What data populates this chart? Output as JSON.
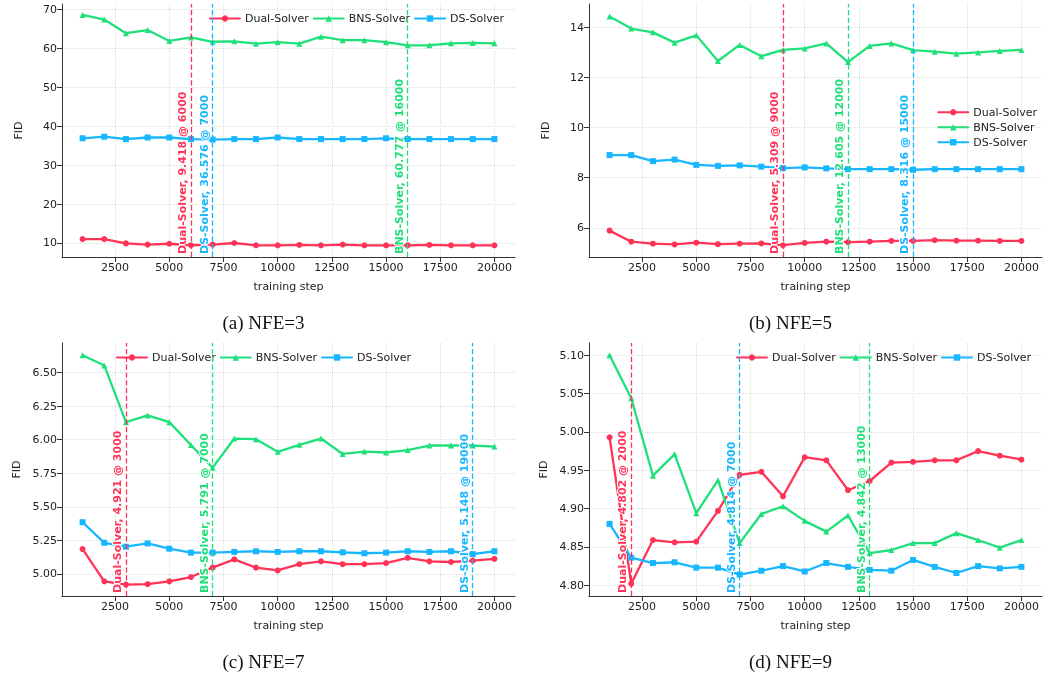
{
  "chart_data": [
    {
      "type": "line",
      "title": "(a) NFE=3",
      "xlabel": "training step",
      "ylabel": "FID",
      "grid": true,
      "legend": "top right",
      "line_style": "solid",
      "x": [
        1000,
        2000,
        3000,
        4000,
        5000,
        6000,
        7000,
        8000,
        9000,
        10000,
        11000,
        12000,
        13000,
        14000,
        15000,
        16000,
        17000,
        18000,
        19000,
        20000
      ],
      "xlim": [
        50,
        20950
      ],
      "xticks": [
        2500,
        5000,
        7500,
        10000,
        12500,
        15000,
        17500,
        20000
      ],
      "ylim": [
        6.4,
        71.4
      ],
      "yticks": [
        10,
        20,
        30,
        40,
        50,
        60,
        70
      ],
      "series": [
        {
          "name": "Dual-Solver",
          "color": "#ff3358",
          "marker": "circle",
          "values": [
            11.0,
            11.0,
            9.9,
            9.6,
            9.8,
            9.418,
            9.6,
            10.0,
            9.4,
            9.4,
            9.5,
            9.4,
            9.6,
            9.4,
            9.4,
            9.4,
            9.5,
            9.4,
            9.4,
            9.4
          ]
        },
        {
          "name": "BNS-Solver",
          "color": "#1fe07a",
          "marker": "triangle",
          "values": [
            68.6,
            67.4,
            63.9,
            64.7,
            61.9,
            62.8,
            61.7,
            61.8,
            61.2,
            61.6,
            61.2,
            63.0,
            62.1,
            62.1,
            61.6,
            60.777,
            60.8,
            61.3,
            61.4,
            61.3
          ]
        },
        {
          "name": "DS-Solver",
          "color": "#17b6ff",
          "marker": "square",
          "values": [
            36.9,
            37.3,
            36.7,
            37.1,
            37.1,
            36.7,
            36.576,
            36.7,
            36.7,
            37.1,
            36.7,
            36.7,
            36.7,
            36.7,
            36.9,
            36.7,
            36.7,
            36.7,
            36.7,
            36.7
          ]
        }
      ],
      "ref_lines": [
        {
          "axis": "x",
          "value": 6000,
          "label": "Dual-Solver, 9.418 @ 6000",
          "color": "#ff3358",
          "line_style": "dashed"
        },
        {
          "axis": "x",
          "value": 7000,
          "label": "DS-Solver, 36.576 @ 7000",
          "color": "#17b6ff",
          "line_style": "dashed"
        },
        {
          "axis": "x",
          "value": 16000,
          "label": "BNS-Solver, 60.777 @ 16000",
          "color": "#1fe07a",
          "line_style": "dashed"
        }
      ]
    },
    {
      "type": "line",
      "title": "(b) NFE=5",
      "xlabel": "training step",
      "ylabel": "FID",
      "grid": true,
      "legend": "right",
      "line_style": "solid",
      "x": [
        1000,
        2000,
        3000,
        4000,
        5000,
        6000,
        7000,
        8000,
        9000,
        10000,
        11000,
        12000,
        13000,
        14000,
        15000,
        16000,
        17000,
        18000,
        19000,
        20000
      ],
      "xlim": [
        50,
        20950
      ],
      "xticks": [
        2500,
        5000,
        7500,
        10000,
        12500,
        15000,
        17500,
        20000
      ],
      "ylim": [
        4.84,
        14.92
      ],
      "yticks": [
        6,
        8,
        10,
        12,
        14
      ],
      "series": [
        {
          "name": "Dual-Solver",
          "color": "#ff3358",
          "marker": "circle",
          "values": [
            5.89,
            5.45,
            5.37,
            5.34,
            5.41,
            5.35,
            5.37,
            5.38,
            5.309,
            5.4,
            5.45,
            5.43,
            5.45,
            5.48,
            5.48,
            5.51,
            5.49,
            5.49,
            5.48,
            5.48
          ]
        },
        {
          "name": "BNS-Solver",
          "color": "#1fe07a",
          "marker": "triangle",
          "values": [
            14.42,
            13.94,
            13.79,
            13.38,
            13.67,
            12.65,
            13.29,
            12.84,
            13.09,
            13.15,
            13.35,
            12.605,
            13.25,
            13.35,
            13.08,
            13.02,
            12.94,
            12.99,
            13.05,
            13.09
          ]
        },
        {
          "name": "DS-Solver",
          "color": "#17b6ff",
          "marker": "square",
          "values": [
            8.9,
            8.9,
            8.66,
            8.72,
            8.51,
            8.47,
            8.49,
            8.44,
            8.38,
            8.41,
            8.37,
            8.34,
            8.34,
            8.34,
            8.316,
            8.34,
            8.34,
            8.34,
            8.34,
            8.34
          ]
        }
      ],
      "ref_lines": [
        {
          "axis": "x",
          "value": 9000,
          "label": "Dual-Solver, 5.309 @ 9000",
          "color": "#ff3358",
          "line_style": "dashed"
        },
        {
          "axis": "x",
          "value": 12000,
          "label": "BNS-Solver, 12.605 @ 12000",
          "color": "#1fe07a",
          "line_style": "dashed"
        },
        {
          "axis": "x",
          "value": 15000,
          "label": "DS-Solver, 8.316 @ 15000",
          "color": "#17b6ff",
          "line_style": "dashed"
        }
      ]
    },
    {
      "type": "line",
      "title": "(c) NFE=7",
      "xlabel": "training step",
      "ylabel": "FID",
      "grid": true,
      "legend": "top",
      "line_style": "solid",
      "x": [
        1000,
        2000,
        3000,
        4000,
        5000,
        6000,
        7000,
        8000,
        9000,
        10000,
        11000,
        12000,
        13000,
        14000,
        15000,
        16000,
        17000,
        18000,
        19000,
        20000
      ],
      "xlim": [
        50,
        20950
      ],
      "xticks": [
        2500,
        5000,
        7500,
        10000,
        12500,
        15000,
        17500,
        20000
      ],
      "ylim": [
        4.836,
        6.719
      ],
      "yticks": [
        {
          "value": 5,
          "label": "5.00"
        },
        {
          "value": 5.25,
          "label": "5.25"
        },
        {
          "value": 5.5,
          "label": "5.50"
        },
        {
          "value": 5.75,
          "label": "5.75"
        },
        {
          "value": 6,
          "label": "6.00"
        },
        {
          "value": 6.25,
          "label": "6.25"
        },
        {
          "value": 6.5,
          "label": "6.50"
        }
      ],
      "series": [
        {
          "name": "Dual-Solver",
          "color": "#ff3358",
          "marker": "circle",
          "values": [
            5.185,
            4.945,
            4.921,
            4.924,
            4.945,
            4.977,
            5.047,
            5.109,
            5.047,
            5.026,
            5.073,
            5.094,
            5.073,
            5.073,
            5.081,
            5.12,
            5.094,
            5.089,
            5.1,
            5.112
          ]
        },
        {
          "name": "BNS-Solver",
          "color": "#1fe07a",
          "marker": "triangle",
          "values": [
            6.628,
            6.552,
            6.13,
            6.18,
            6.13,
            5.96,
            5.791,
            6.008,
            6.003,
            5.909,
            5.961,
            6.008,
            5.893,
            5.911,
            5.904,
            5.922,
            5.956,
            5.956,
            5.956,
            5.948
          ]
        },
        {
          "name": "DS-Solver",
          "color": "#17b6ff",
          "marker": "square",
          "values": [
            5.385,
            5.232,
            5.203,
            5.227,
            5.188,
            5.159,
            5.159,
            5.164,
            5.169,
            5.164,
            5.169,
            5.169,
            5.161,
            5.154,
            5.159,
            5.169,
            5.164,
            5.169,
            5.148,
            5.169
          ]
        }
      ],
      "ref_lines": [
        {
          "axis": "x",
          "value": 3000,
          "label": "Dual-Solver, 4.921 @ 3000",
          "color": "#ff3358",
          "line_style": "dashed"
        },
        {
          "axis": "x",
          "value": 7000,
          "label": "BNS-Solver, 5.791 @ 7000",
          "color": "#1fe07a",
          "line_style": "dashed"
        },
        {
          "axis": "x",
          "value": 19000,
          "label": "DS-Solver, 5.148 @ 19000",
          "color": "#17b6ff",
          "line_style": "dashed"
        }
      ]
    },
    {
      "type": "line",
      "title": "(d) NFE=9",
      "xlabel": "training step",
      "ylabel": "FID",
      "grid": true,
      "legend": "top right",
      "line_style": "solid",
      "x": [
        1000,
        2000,
        3000,
        4000,
        5000,
        6000,
        7000,
        8000,
        9000,
        10000,
        11000,
        12000,
        13000,
        14000,
        15000,
        16000,
        17000,
        18000,
        19000,
        20000
      ],
      "xlim": [
        50,
        20950
      ],
      "xticks": [
        2500,
        5000,
        7500,
        10000,
        12500,
        15000,
        17500,
        20000
      ],
      "ylim": [
        4.786,
        5.116
      ],
      "yticks": [
        {
          "value": 4.8,
          "label": "4.80"
        },
        {
          "value": 4.85,
          "label": "4.85"
        },
        {
          "value": 4.9,
          "label": "4.90"
        },
        {
          "value": 4.95,
          "label": "4.95"
        },
        {
          "value": 5,
          "label": "5.00"
        },
        {
          "value": 5.05,
          "label": "5.05"
        },
        {
          "value": 5.1,
          "label": "5.10"
        }
      ],
      "series": [
        {
          "name": "Dual-Solver",
          "color": "#ff3358",
          "marker": "circle",
          "values": [
            4.993,
            4.802,
            4.859,
            4.856,
            4.857,
            4.897,
            4.944,
            4.948,
            4.916,
            4.967,
            4.963,
            4.924,
            4.936,
            4.96,
            4.961,
            4.963,
            4.963,
            4.975,
            4.969,
            4.964
          ]
        },
        {
          "name": "BNS-Solver",
          "color": "#1fe07a",
          "marker": "triangle",
          "values": [
            5.1,
            5.044,
            4.943,
            4.971,
            4.894,
            4.937,
            4.855,
            4.893,
            4.903,
            4.884,
            4.87,
            4.891,
            4.842,
            4.846,
            4.855,
            4.855,
            4.868,
            4.859,
            4.849,
            4.859
          ]
        },
        {
          "name": "DS-Solver",
          "color": "#17b6ff",
          "marker": "square",
          "values": [
            4.88,
            4.836,
            4.829,
            4.83,
            4.823,
            4.823,
            4.814,
            4.819,
            4.825,
            4.818,
            4.829,
            4.824,
            4.82,
            4.819,
            4.833,
            4.824,
            4.816,
            4.825,
            4.822,
            4.824
          ]
        }
      ],
      "ref_lines": [
        {
          "axis": "x",
          "value": 2000,
          "label": "Dual-Solver, 4.802 @ 2000",
          "color": "#ff3358",
          "line_style": "dashed"
        },
        {
          "axis": "x",
          "value": 7000,
          "label": "DS-Solver, 4.814 @ 7000",
          "color": "#17b6ff",
          "line_style": "dashed"
        },
        {
          "axis": "x",
          "value": 13000,
          "label": "BNS-Solver, 4.842 @ 13000",
          "color": "#1fe07a",
          "line_style": "dashed"
        }
      ]
    }
  ]
}
